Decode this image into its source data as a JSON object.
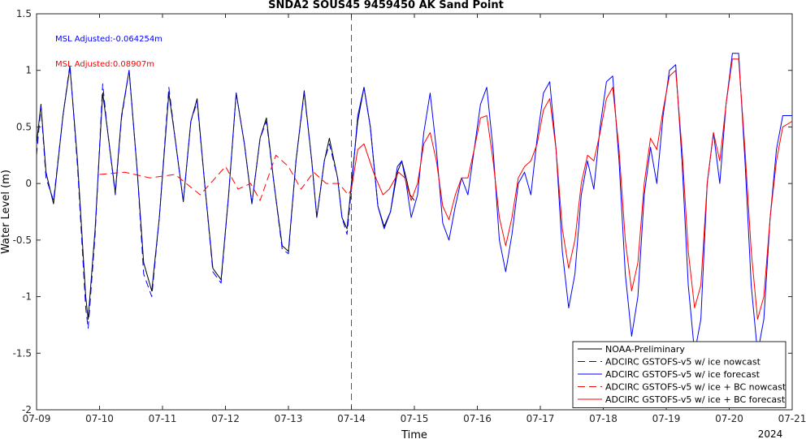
{
  "chart_data": {
    "type": "line",
    "title": "SNDA2 SOUS45 9459450 AK Sand Point",
    "xlabel": "Time",
    "ylabel": "Water Level (m)",
    "ylim": [
      -2,
      1.5
    ],
    "xlim_days": [
      0,
      12
    ],
    "x_tick_labels": [
      "07-09",
      "07-10",
      "07-11",
      "07-12",
      "07-13",
      "07-14",
      "07-15",
      "07-16",
      "07-17",
      "07-18",
      "07-19",
      "07-20",
      "07-21"
    ],
    "y_tick_labels": [
      "-2",
      "-1.5",
      "-1",
      "-0.5",
      "0",
      "0.5",
      "1",
      "1.5"
    ],
    "year_label": "2024",
    "forecast_start_label": "07-14",
    "annotations": [
      {
        "text": "MSL Adjusted:-0.064254m",
        "color": "#0000ff"
      },
      {
        "text": "MSL Adjusted:0.08907m",
        "color": "#ff0000"
      }
    ],
    "legend_position": "bottom-right",
    "grid": false,
    "series": [
      {
        "name": "NOAA-Preliminary",
        "color": "#000000",
        "style": "solid",
        "points": [
          [
            0,
            0.35
          ],
          [
            0.07,
            0.7
          ],
          [
            0.15,
            0.1
          ],
          [
            0.27,
            -0.18
          ],
          [
            0.42,
            0.6
          ],
          [
            0.53,
            1.03
          ],
          [
            0.65,
            0.2
          ],
          [
            0.78,
            -1.0
          ],
          [
            0.82,
            -1.2
          ],
          [
            0.93,
            -0.4
          ],
          [
            1.05,
            0.8
          ],
          [
            1.12,
            0.5
          ],
          [
            1.25,
            -0.08
          ],
          [
            1.35,
            0.6
          ],
          [
            1.47,
            1.0
          ],
          [
            1.6,
            0.1
          ],
          [
            1.7,
            -0.7
          ],
          [
            1.83,
            -0.95
          ],
          [
            1.95,
            -0.3
          ],
          [
            2.1,
            0.8
          ],
          [
            2.2,
            0.4
          ],
          [
            2.33,
            -0.16
          ],
          [
            2.45,
            0.55
          ],
          [
            2.55,
            0.75
          ],
          [
            2.67,
            0
          ],
          [
            2.8,
            -0.75
          ],
          [
            2.93,
            -0.85
          ],
          [
            3.05,
            -0.1
          ],
          [
            3.17,
            0.8
          ],
          [
            3.3,
            0.35
          ],
          [
            3.42,
            -0.18
          ],
          [
            3.55,
            0.4
          ],
          [
            3.65,
            0.58
          ],
          [
            3.77,
            0
          ],
          [
            3.9,
            -0.55
          ],
          [
            4.0,
            -0.6
          ],
          [
            4.12,
            0.2
          ],
          [
            4.25,
            0.82
          ],
          [
            4.37,
            0.2
          ],
          [
            4.45,
            -0.3
          ],
          [
            4.57,
            0.2
          ],
          [
            4.65,
            0.4
          ],
          [
            4.78,
            0.05
          ],
          [
            4.85,
            -0.3
          ],
          [
            4.93,
            -0.4
          ],
          [
            5.0,
            0.0
          ],
          [
            5.1,
            0.55
          ],
          [
            5.2,
            0.85
          ],
          [
            5.3,
            0.5
          ],
          [
            5.42,
            -0.2
          ],
          [
            5.52,
            -0.38
          ],
          [
            5.62,
            -0.25
          ],
          [
            5.73,
            0.1
          ],
          [
            5.8,
            0.2
          ],
          [
            5.87,
            0.05
          ],
          [
            5.93,
            -0.1
          ],
          [
            6.0,
            -0.15
          ]
        ]
      },
      {
        "name": "ADCIRC GSTOFS-v5 w/ ice nowcast",
        "color": "#0000ff",
        "style": "dashed",
        "points": [
          [
            0,
            0.25
          ],
          [
            0.07,
            0.68
          ],
          [
            0.15,
            0.05
          ],
          [
            0.27,
            -0.15
          ],
          [
            0.42,
            0.6
          ],
          [
            0.53,
            1.05
          ],
          [
            0.65,
            0.15
          ],
          [
            0.78,
            -1.1
          ],
          [
            0.82,
            -1.28
          ],
          [
            0.93,
            -0.45
          ],
          [
            1.05,
            0.88
          ],
          [
            1.12,
            0.5
          ],
          [
            1.25,
            -0.1
          ],
          [
            1.35,
            0.58
          ],
          [
            1.47,
            1.0
          ],
          [
            1.6,
            0.1
          ],
          [
            1.7,
            -0.8
          ],
          [
            1.83,
            -1.0
          ],
          [
            1.95,
            -0.3
          ],
          [
            2.1,
            0.85
          ],
          [
            2.2,
            0.4
          ],
          [
            2.33,
            -0.16
          ],
          [
            2.45,
            0.55
          ],
          [
            2.55,
            0.72
          ],
          [
            2.67,
            0
          ],
          [
            2.8,
            -0.78
          ],
          [
            2.93,
            -0.88
          ],
          [
            3.05,
            -0.1
          ],
          [
            3.17,
            0.8
          ],
          [
            3.3,
            0.35
          ],
          [
            3.42,
            -0.18
          ],
          [
            3.55,
            0.4
          ],
          [
            3.65,
            0.55
          ],
          [
            3.77,
            0
          ],
          [
            3.9,
            -0.58
          ],
          [
            4.0,
            -0.62
          ],
          [
            4.12,
            0.2
          ],
          [
            4.25,
            0.8
          ],
          [
            4.37,
            0.2
          ],
          [
            4.45,
            -0.3
          ],
          [
            4.57,
            0.2
          ],
          [
            4.65,
            0.35
          ],
          [
            4.78,
            0.05
          ],
          [
            4.85,
            -0.3
          ],
          [
            4.93,
            -0.45
          ],
          [
            5.0,
            -0.05
          ]
        ]
      },
      {
        "name": "ADCIRC GSTOFS-v5 w/ ice forecast",
        "color": "#0000ff",
        "style": "solid",
        "points": [
          [
            5.0,
            -0.05
          ],
          [
            5.1,
            0.6
          ],
          [
            5.2,
            0.85
          ],
          [
            5.3,
            0.5
          ],
          [
            5.42,
            -0.2
          ],
          [
            5.52,
            -0.4
          ],
          [
            5.62,
            -0.25
          ],
          [
            5.73,
            0.15
          ],
          [
            5.8,
            0.2
          ],
          [
            5.87,
            0.0
          ],
          [
            5.95,
            -0.3
          ],
          [
            6.05,
            -0.1
          ],
          [
            6.15,
            0.45
          ],
          [
            6.25,
            0.8
          ],
          [
            6.35,
            0.3
          ],
          [
            6.45,
            -0.35
          ],
          [
            6.55,
            -0.5
          ],
          [
            6.65,
            -0.2
          ],
          [
            6.75,
            0.05
          ],
          [
            6.85,
            -0.1
          ],
          [
            6.95,
            0.3
          ],
          [
            7.05,
            0.7
          ],
          [
            7.15,
            0.85
          ],
          [
            7.25,
            0.3
          ],
          [
            7.35,
            -0.5
          ],
          [
            7.45,
            -0.78
          ],
          [
            7.55,
            -0.45
          ],
          [
            7.65,
            0.0
          ],
          [
            7.75,
            0.1
          ],
          [
            7.85,
            -0.1
          ],
          [
            7.95,
            0.4
          ],
          [
            8.05,
            0.8
          ],
          [
            8.15,
            0.9
          ],
          [
            8.25,
            0.3
          ],
          [
            8.35,
            -0.6
          ],
          [
            8.45,
            -1.1
          ],
          [
            8.55,
            -0.8
          ],
          [
            8.65,
            -0.1
          ],
          [
            8.75,
            0.2
          ],
          [
            8.85,
            -0.05
          ],
          [
            8.95,
            0.5
          ],
          [
            9.05,
            0.9
          ],
          [
            9.15,
            0.95
          ],
          [
            9.25,
            0.2
          ],
          [
            9.35,
            -0.8
          ],
          [
            9.45,
            -1.35
          ],
          [
            9.55,
            -1.0
          ],
          [
            9.65,
            -0.1
          ],
          [
            9.75,
            0.32
          ],
          [
            9.85,
            0.0
          ],
          [
            9.95,
            0.6
          ],
          [
            10.05,
            1.0
          ],
          [
            10.15,
            1.05
          ],
          [
            10.25,
            0.2
          ],
          [
            10.35,
            -0.9
          ],
          [
            10.45,
            -1.5
          ],
          [
            10.55,
            -1.2
          ],
          [
            10.65,
            0.0
          ],
          [
            10.75,
            0.45
          ],
          [
            10.85,
            0.0
          ],
          [
            10.95,
            0.7
          ],
          [
            11.05,
            1.15
          ],
          [
            11.15,
            1.15
          ],
          [
            11.25,
            0.2
          ],
          [
            11.35,
            -0.9
          ],
          [
            11.45,
            -1.5
          ],
          [
            11.55,
            -1.2
          ],
          [
            11.65,
            -0.3
          ],
          [
            11.75,
            0.3
          ],
          [
            11.85,
            0.6
          ],
          [
            12.0,
            0.6
          ]
        ]
      },
      {
        "name": "ADCIRC GSTOFS-v5 w/ ice + BC nowcast",
        "color": "#ff0000",
        "style": "dashed",
        "points": [
          [
            1.0,
            0.08
          ],
          [
            1.4,
            0.1
          ],
          [
            1.8,
            0.05
          ],
          [
            2.2,
            0.08
          ],
          [
            2.6,
            -0.1
          ],
          [
            3.0,
            0.15
          ],
          [
            3.2,
            -0.05
          ],
          [
            3.4,
            0.0
          ],
          [
            3.55,
            -0.15
          ],
          [
            3.8,
            0.25
          ],
          [
            4.0,
            0.15
          ],
          [
            4.2,
            -0.05
          ],
          [
            4.4,
            0.1
          ],
          [
            4.6,
            0.0
          ],
          [
            4.8,
            0.0
          ],
          [
            4.95,
            -0.1
          ],
          [
            5.0,
            -0.05
          ]
        ]
      },
      {
        "name": "ADCIRC GSTOFS-v5 w/ ice + BC forecast",
        "color": "#ff0000",
        "style": "solid",
        "points": [
          [
            5.0,
            -0.05
          ],
          [
            5.1,
            0.3
          ],
          [
            5.2,
            0.35
          ],
          [
            5.35,
            0.1
          ],
          [
            5.5,
            -0.1
          ],
          [
            5.6,
            -0.05
          ],
          [
            5.75,
            0.1
          ],
          [
            5.85,
            0.05
          ],
          [
            5.95,
            -0.15
          ],
          [
            6.05,
            0.0
          ],
          [
            6.15,
            0.35
          ],
          [
            6.25,
            0.45
          ],
          [
            6.35,
            0.2
          ],
          [
            6.45,
            -0.2
          ],
          [
            6.55,
            -0.32
          ],
          [
            6.65,
            -0.1
          ],
          [
            6.75,
            0.05
          ],
          [
            6.85,
            0.05
          ],
          [
            6.95,
            0.3
          ],
          [
            7.05,
            0.58
          ],
          [
            7.15,
            0.6
          ],
          [
            7.25,
            0.2
          ],
          [
            7.35,
            -0.3
          ],
          [
            7.45,
            -0.55
          ],
          [
            7.55,
            -0.3
          ],
          [
            7.65,
            0.05
          ],
          [
            7.75,
            0.15
          ],
          [
            7.85,
            0.2
          ],
          [
            7.95,
            0.35
          ],
          [
            8.05,
            0.65
          ],
          [
            8.15,
            0.75
          ],
          [
            8.25,
            0.3
          ],
          [
            8.35,
            -0.4
          ],
          [
            8.45,
            -0.75
          ],
          [
            8.55,
            -0.5
          ],
          [
            8.65,
            0.0
          ],
          [
            8.75,
            0.25
          ],
          [
            8.85,
            0.2
          ],
          [
            8.95,
            0.45
          ],
          [
            9.05,
            0.75
          ],
          [
            9.15,
            0.85
          ],
          [
            9.25,
            0.3
          ],
          [
            9.35,
            -0.5
          ],
          [
            9.45,
            -0.95
          ],
          [
            9.55,
            -0.7
          ],
          [
            9.65,
            0.0
          ],
          [
            9.75,
            0.4
          ],
          [
            9.85,
            0.3
          ],
          [
            9.95,
            0.65
          ],
          [
            10.05,
            0.95
          ],
          [
            10.15,
            1.0
          ],
          [
            10.25,
            0.3
          ],
          [
            10.35,
            -0.6
          ],
          [
            10.45,
            -1.1
          ],
          [
            10.55,
            -0.9
          ],
          [
            10.65,
            0.0
          ],
          [
            10.75,
            0.45
          ],
          [
            10.85,
            0.2
          ],
          [
            10.95,
            0.7
          ],
          [
            11.05,
            1.1
          ],
          [
            11.15,
            1.1
          ],
          [
            11.25,
            0.3
          ],
          [
            11.35,
            -0.6
          ],
          [
            11.45,
            -1.2
          ],
          [
            11.55,
            -1.0
          ],
          [
            11.65,
            -0.3
          ],
          [
            11.75,
            0.2
          ],
          [
            11.85,
            0.5
          ],
          [
            12.0,
            0.55
          ]
        ]
      }
    ]
  }
}
